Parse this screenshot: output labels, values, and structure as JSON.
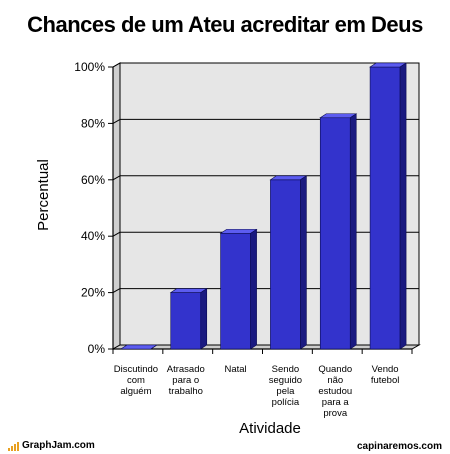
{
  "title": "Chances de um Ateu acreditar em Deus",
  "footer": {
    "left_brand": "GraphJam.com",
    "right_brand": "capinaremos.com"
  },
  "colors": {
    "bar_front": "#3333cc",
    "bar_side": "#1a1a80",
    "bar_top": "#5c5cf0",
    "wall": "#e6e6e6",
    "wall_side": "#cfcfcf",
    "floor": "#cccccc"
  },
  "chart_data": {
    "type": "bar",
    "title": "Chances de um Ateu acreditar em Deus",
    "xlabel": "Atividade",
    "ylabel": "Percentual",
    "ylim": [
      0,
      100
    ],
    "yticks": [
      "0%",
      "20%",
      "40%",
      "60%",
      "80%",
      "100%"
    ],
    "ytick_values": [
      0,
      20,
      40,
      60,
      80,
      100
    ],
    "grid": true,
    "categories": [
      [
        "Discutindo",
        "com",
        "alguém"
      ],
      [
        "Atrasado",
        "para o",
        "trabalho"
      ],
      [
        "Natal"
      ],
      [
        "Sendo",
        "seguido",
        "pela",
        "polícia"
      ],
      [
        "Quando",
        "não",
        "estudou",
        "para a",
        "prova"
      ],
      [
        "Vendo",
        "futebol"
      ]
    ],
    "values": [
      0,
      20,
      41,
      60,
      82,
      100
    ]
  }
}
